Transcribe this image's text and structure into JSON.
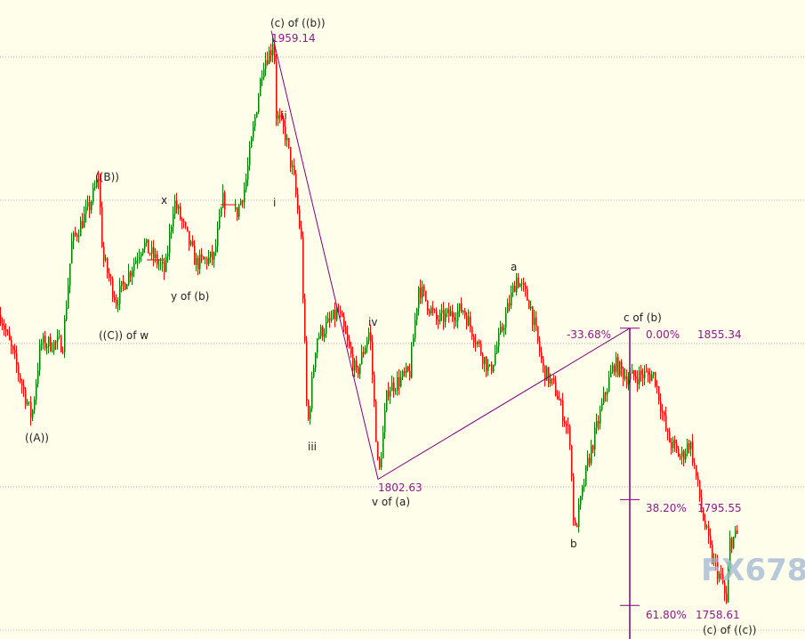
{
  "chart_data": {
    "type": "candlestick",
    "grid": true,
    "grid_levels": [
      1950,
      1900,
      1850,
      1800,
      1750
    ],
    "ylim": [
      1740,
      1965
    ],
    "colors": {
      "up": "#008000",
      "down": "#ff0000",
      "annotation": "#800080",
      "grid": "#b0b0b0"
    },
    "price_path": [
      1860,
      1840,
      1824,
      1850,
      1850,
      1885,
      1898,
      1908,
      1880,
      1865,
      1885,
      1875,
      1900,
      1878,
      1880,
      1900,
      1895,
      1905,
      1948,
      1953,
      1959.14,
      1930,
      1923,
      1907,
      1886,
      1820,
      1852,
      1861,
      1839,
      1855,
      1802.63,
      1834,
      1840,
      1870,
      1858,
      1862,
      1840,
      1873,
      1864,
      1841,
      1833,
      1817,
      1783,
      1808,
      1833,
      1843,
      1838,
      1839,
      1839,
      1817,
      1810,
      1816,
      1789,
      1775,
      1766,
      1758.6,
      1781,
      1783
    ],
    "annotations": {
      "wave_labels": [
        {
          "text": "((A))",
          "price": 1823
        },
        {
          "text": "((B))",
          "price": 1905
        },
        {
          "text": "((C)) of w",
          "price": 1853
        },
        {
          "text": "x",
          "price": 1900
        },
        {
          "text": "y of (b)",
          "price": 1865
        },
        {
          "text": "(c) of ((b))",
          "price": 1959.14
        },
        {
          "text": "ii",
          "price": 1930
        },
        {
          "text": "i",
          "price": 1897
        },
        {
          "text": "iii",
          "price": 1817
        },
        {
          "text": "iv",
          "price": 1857
        },
        {
          "text": "v of (a)",
          "price": 1802.63
        },
        {
          "text": "a",
          "price": 1873
        },
        {
          "text": "b",
          "price": 1783
        },
        {
          "text": "c of (b)",
          "price": 1855.34
        },
        {
          "text": "(c) of ((c))",
          "price": 1758.6
        }
      ],
      "price_labels": {
        "high": "1959.14",
        "low": "1802.63"
      },
      "fibonacci": [
        {
          "pct": "-33.68%",
          "price": ""
        },
        {
          "pct": "0.00%",
          "price": "1855.34"
        },
        {
          "pct": "38.20%",
          "price": "1795.55"
        },
        {
          "pct": "61.80%",
          "price": "1758.61"
        }
      ]
    },
    "watermark": "FX678"
  }
}
